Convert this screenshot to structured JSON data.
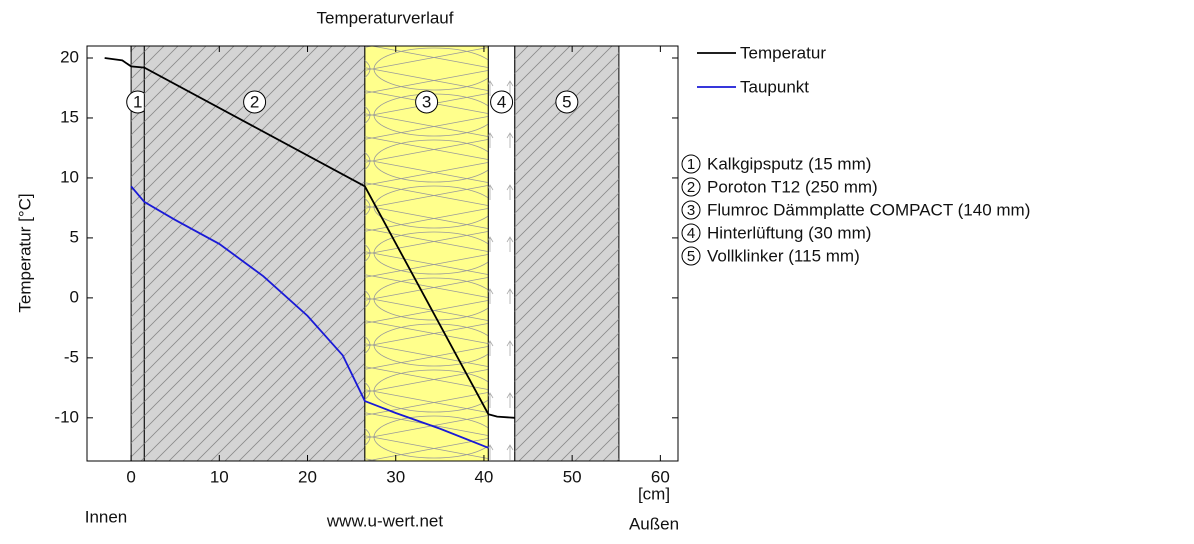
{
  "chart_data": {
    "type": "line",
    "title": "Temperaturverlauf",
    "y_label": "Temperatur [°C]",
    "x_unit": "[cm]",
    "inside_label": "Innen",
    "outside_label": "Außen",
    "source": "www.u-wert.net",
    "xlim": [
      -5,
      62
    ],
    "ylim": [
      -13.6,
      21
    ],
    "xticks": [
      0,
      10,
      20,
      30,
      40,
      50,
      60
    ],
    "yticks": [
      -10,
      -5,
      0,
      5,
      10,
      15,
      20
    ],
    "layers": [
      {
        "number": "1",
        "name": "Kalkgipsputz (15 mm)",
        "x": [
          0,
          1.5
        ],
        "color": "#d4d4d4",
        "pattern": "hatch"
      },
      {
        "number": "2",
        "name": "Poroton T12 (250 mm)",
        "x": [
          1.5,
          26.5
        ],
        "color": "#d4d4d4",
        "pattern": "hatch"
      },
      {
        "number": "3",
        "name": "Flumroc Dämmplatte COMPACT (140 mm)",
        "x": [
          26.5,
          40.5
        ],
        "color": "#ffff8c",
        "pattern": "insulation"
      },
      {
        "number": "4",
        "name": "Hinterlüftung (30 mm)",
        "x": [
          40.5,
          43.5
        ],
        "color": "#ffffff",
        "pattern": "air"
      },
      {
        "number": "5",
        "name": "Vollklinker (115 mm)",
        "x": [
          43.5,
          55.3
        ],
        "color": "#d4d4d4",
        "pattern": "hatch"
      }
    ],
    "series": [
      {
        "name": "Temperatur",
        "color": "#000000",
        "x": [
          -3,
          -1,
          0,
          1.5,
          26.5,
          40.5,
          41.5,
          43.5
        ],
        "values": [
          20,
          19.8,
          19.3,
          19.2,
          9.3,
          -9.7,
          -9.9,
          -10
        ]
      },
      {
        "name": "Taupunkt",
        "color": "#1a1ad6",
        "x": [
          0,
          1.5,
          5,
          10,
          15,
          20,
          24,
          26.5,
          30,
          35,
          40.5
        ],
        "values": [
          9.3,
          8,
          6.5,
          4.5,
          1.8,
          -1.5,
          -4.8,
          -8.6,
          -9.6,
          -10.9,
          -12.5
        ]
      }
    ]
  }
}
